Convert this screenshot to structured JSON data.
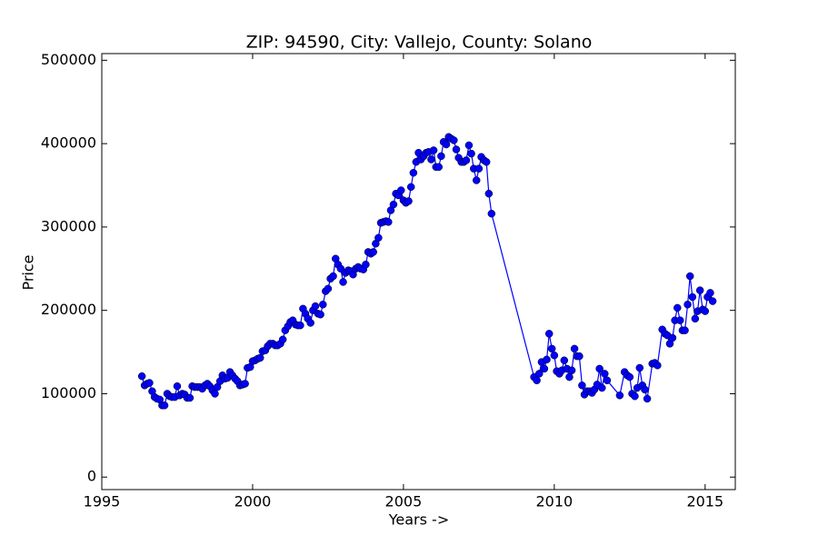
{
  "chart_data": {
    "type": "line",
    "title": "ZIP: 94590, City: Vallejo, County: Solano",
    "x_label": "Years ->",
    "y_label": "Price",
    "color": "#0000ff",
    "xlim": [
      1995,
      2016
    ],
    "xticks": [
      1995,
      2000,
      2005,
      2010,
      2015
    ],
    "ylim": [
      -15000,
      508000
    ],
    "yticks": [
      0,
      100000,
      200000,
      300000,
      400000,
      500000
    ],
    "x": [
      1996.33,
      1996.42,
      1996.5,
      1996.58,
      1996.67,
      1996.75,
      1996.83,
      1996.92,
      1997.0,
      1997.08,
      1997.17,
      1997.25,
      1997.33,
      1997.42,
      1997.5,
      1997.58,
      1997.67,
      1997.75,
      1997.83,
      1997.92,
      1998.0,
      1998.08,
      1998.17,
      1998.25,
      1998.33,
      1998.42,
      1998.5,
      1998.58,
      1998.67,
      1998.75,
      1998.83,
      1998.92,
      1999.0,
      1999.08,
      1999.17,
      1999.25,
      1999.33,
      1999.42,
      1999.5,
      1999.58,
      1999.67,
      1999.75,
      1999.83,
      1999.92,
      2000.0,
      2000.08,
      2000.17,
      2000.25,
      2000.33,
      2000.42,
      2000.5,
      2000.58,
      2000.67,
      2000.75,
      2000.83,
      2000.92,
      2001.0,
      2001.08,
      2001.17,
      2001.25,
      2001.33,
      2001.42,
      2001.5,
      2001.58,
      2001.67,
      2001.75,
      2001.83,
      2001.92,
      2002.0,
      2002.08,
      2002.17,
      2002.25,
      2002.33,
      2002.42,
      2002.5,
      2002.58,
      2002.67,
      2002.75,
      2002.83,
      2002.92,
      2003.0,
      2003.08,
      2003.17,
      2003.25,
      2003.33,
      2003.42,
      2003.5,
      2003.58,
      2003.67,
      2003.75,
      2003.83,
      2003.92,
      2004.0,
      2004.08,
      2004.17,
      2004.25,
      2004.33,
      2004.42,
      2004.5,
      2004.58,
      2004.67,
      2004.75,
      2004.83,
      2004.92,
      2005.0,
      2005.08,
      2005.17,
      2005.25,
      2005.33,
      2005.42,
      2005.5,
      2005.58,
      2005.67,
      2005.75,
      2005.83,
      2005.92,
      2006.0,
      2006.08,
      2006.17,
      2006.25,
      2006.33,
      2006.42,
      2006.5,
      2006.58,
      2006.67,
      2006.75,
      2006.83,
      2006.92,
      2007.0,
      2007.08,
      2007.17,
      2007.25,
      2007.33,
      2007.42,
      2007.5,
      2007.58,
      2007.67,
      2007.75,
      2007.83,
      2007.92,
      2009.33,
      2009.42,
      2009.5,
      2009.58,
      2009.67,
      2009.75,
      2009.83,
      2009.92,
      2010.0,
      2010.08,
      2010.17,
      2010.25,
      2010.33,
      2010.42,
      2010.5,
      2010.58,
      2010.67,
      2010.75,
      2010.83,
      2010.92,
      2011.0,
      2011.08,
      2011.17,
      2011.25,
      2011.33,
      2011.42,
      2011.5,
      2011.58,
      2011.67,
      2011.75,
      2012.17,
      2012.33,
      2012.42,
      2012.5,
      2012.58,
      2012.67,
      2012.75,
      2012.83,
      2012.92,
      2013.0,
      2013.08,
      2013.25,
      2013.33,
      2013.42,
      2013.58,
      2013.67,
      2013.75,
      2013.83,
      2013.92,
      2014.0,
      2014.08,
      2014.17,
      2014.25,
      2014.33,
      2014.42,
      2014.5,
      2014.58,
      2014.67,
      2014.75,
      2014.83,
      2014.92,
      2015.0,
      2015.08,
      2015.17,
      2015.25
    ],
    "values": [
      121000,
      110000,
      112000,
      113000,
      103000,
      96000,
      94000,
      93000,
      86000,
      86000,
      100000,
      97000,
      96000,
      96000,
      109000,
      98000,
      100000,
      99000,
      95000,
      95000,
      109000,
      108000,
      108000,
      108000,
      106000,
      110000,
      112000,
      109000,
      104000,
      100000,
      108000,
      115000,
      122000,
      118000,
      119000,
      126000,
      122000,
      118000,
      115000,
      110000,
      111000,
      112000,
      131000,
      132000,
      139000,
      140000,
      142000,
      143000,
      151000,
      152000,
      157000,
      160000,
      160000,
      158000,
      158000,
      160000,
      165000,
      176000,
      181000,
      186000,
      188000,
      183000,
      182000,
      182000,
      202000,
      196000,
      190000,
      185000,
      200000,
      205000,
      196000,
      195000,
      207000,
      223000,
      226000,
      238000,
      241000,
      262000,
      255000,
      250000,
      234000,
      245000,
      248000,
      247000,
      243000,
      250000,
      252000,
      250000,
      249000,
      255000,
      270000,
      268000,
      270000,
      280000,
      287000,
      305000,
      306000,
      307000,
      306000,
      320000,
      327000,
      340000,
      338000,
      344000,
      332000,
      329000,
      331000,
      348000,
      365000,
      378000,
      389000,
      381000,
      385000,
      389000,
      390000,
      381000,
      392000,
      372000,
      372000,
      385000,
      402000,
      399000,
      408000,
      406000,
      404000,
      393000,
      383000,
      378000,
      378000,
      380000,
      398000,
      388000,
      370000,
      356000,
      370000,
      384000,
      380000,
      378000,
      340000,
      316000,
      120000,
      116000,
      124000,
      138000,
      130000,
      141000,
      172000,
      154000,
      146000,
      127000,
      124000,
      128000,
      140000,
      130000,
      120000,
      128000,
      154000,
      145000,
      145000,
      110000,
      99000,
      103000,
      103000,
      101000,
      105000,
      111000,
      130000,
      107000,
      124000,
      116000,
      98000,
      126000,
      122000,
      120000,
      100000,
      97000,
      107000,
      131000,
      110000,
      105000,
      94000,
      136000,
      137000,
      134000,
      177000,
      172000,
      170000,
      160000,
      167000,
      188000,
      203000,
      188000,
      176000,
      176000,
      207000,
      241000,
      216000,
      190000,
      199000,
      224000,
      201000,
      199000,
      216000,
      221000,
      211000
    ]
  }
}
